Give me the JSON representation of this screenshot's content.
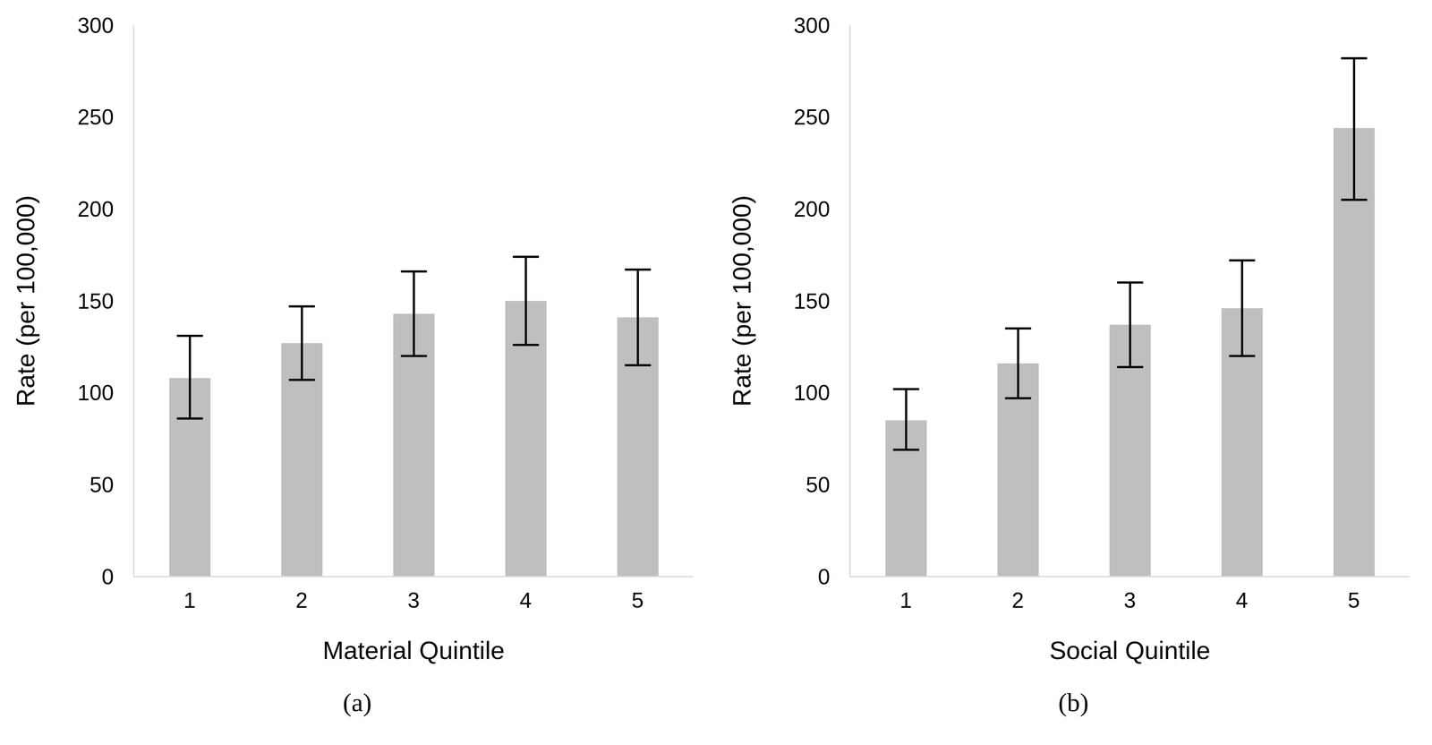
{
  "chart_data": [
    {
      "type": "bar",
      "caption": "(a)",
      "x_label": "Material Quintile",
      "y_label": "Rate (per 100,000)",
      "categories": [
        "1",
        "2",
        "3",
        "4",
        "5"
      ],
      "values": [
        108,
        127,
        143,
        150,
        141
      ],
      "errors": [
        [
          22,
          23
        ],
        [
          20,
          20
        ],
        [
          23,
          23
        ],
        [
          24,
          24
        ],
        [
          26,
          26
        ]
      ],
      "color": "#bfbfbf",
      "ylim": [
        0,
        300
      ],
      "yticks": [
        0,
        50,
        100,
        150,
        200,
        250,
        300
      ],
      "grid": false
    },
    {
      "type": "bar",
      "caption": "(b)",
      "x_label": "Social Quintile",
      "y_label": "Rate (per 100,000)",
      "categories": [
        "1",
        "2",
        "3",
        "4",
        "5"
      ],
      "values": [
        85,
        116,
        137,
        146,
        244
      ],
      "errors": [
        [
          16,
          17
        ],
        [
          19,
          19
        ],
        [
          23,
          23
        ],
        [
          26,
          26
        ],
        [
          39,
          38
        ]
      ],
      "color": "#bfbfbf",
      "ylim": [
        0,
        300
      ],
      "yticks": [
        0,
        50,
        100,
        150,
        200,
        250,
        300
      ],
      "grid": false
    }
  ]
}
